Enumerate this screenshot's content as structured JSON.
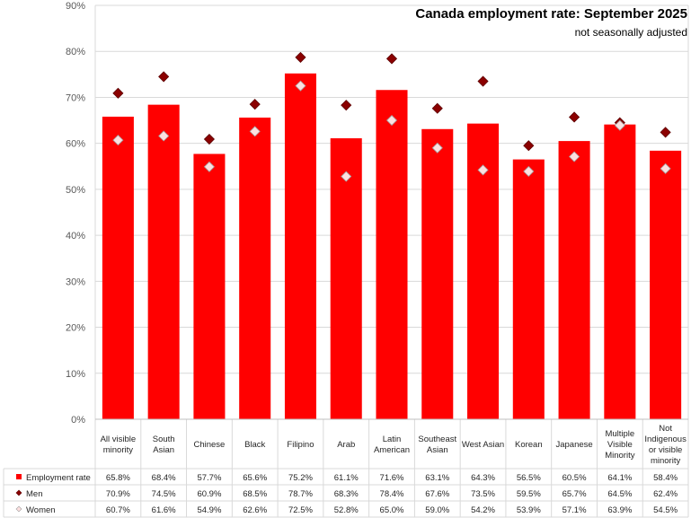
{
  "chart_data": {
    "type": "bar",
    "title": "Canada employment rate: September 2025",
    "subtitle": "not seasonally adjusted",
    "categories": [
      [
        "All visible",
        "minority"
      ],
      [
        "South",
        "Asian"
      ],
      [
        "Chinese"
      ],
      [
        "Black"
      ],
      [
        "Filipino"
      ],
      [
        "Arab"
      ],
      [
        "Latin",
        "American"
      ],
      [
        "Southeast",
        "Asian"
      ],
      [
        "West Asian"
      ],
      [
        "Korean"
      ],
      [
        "Japanese"
      ],
      [
        "Multiple",
        "Visible",
        "Minority"
      ],
      [
        "Not",
        "Indigenous",
        "or visible",
        "minority"
      ]
    ],
    "series": [
      {
        "name": "Employment rate",
        "mark": "bar",
        "color": "#ff0000",
        "values": [
          65.8,
          68.4,
          57.7,
          65.6,
          75.2,
          61.1,
          71.6,
          63.1,
          64.3,
          56.5,
          60.5,
          64.1,
          58.4
        ]
      },
      {
        "name": "Men",
        "mark": "diamond",
        "color": "#8b0000",
        "values": [
          70.9,
          74.5,
          60.9,
          68.5,
          78.7,
          68.3,
          78.4,
          67.6,
          73.5,
          59.5,
          65.7,
          64.5,
          62.4
        ]
      },
      {
        "name": "Women",
        "mark": "diamond",
        "color": "#fde0e0",
        "values": [
          60.7,
          61.6,
          54.9,
          62.6,
          72.5,
          52.8,
          65.0,
          59.0,
          54.2,
          53.9,
          57.1,
          63.9,
          54.5
        ]
      }
    ],
    "y_ticks": [
      "0%",
      "10%",
      "20%",
      "30%",
      "40%",
      "50%",
      "60%",
      "70%",
      "80%",
      "90%"
    ],
    "ylim": [
      0,
      90
    ],
    "value_suffix": "%",
    "grid": true,
    "legend": "data-table"
  }
}
